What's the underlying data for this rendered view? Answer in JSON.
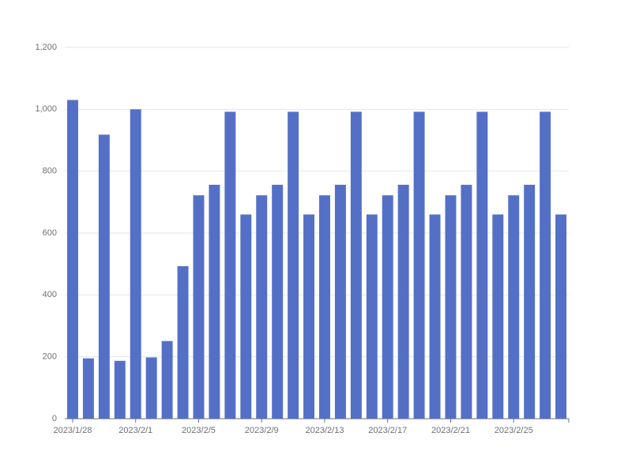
{
  "chart_data": {
    "type": "bar",
    "categories": [
      "2023/1/28",
      null,
      null,
      null,
      "2023/2/1",
      null,
      null,
      null,
      "2023/2/5",
      null,
      null,
      null,
      "2023/2/9",
      null,
      null,
      null,
      "2023/2/13",
      null,
      null,
      null,
      "2023/2/17",
      null,
      null,
      null,
      "2023/2/21",
      null,
      null,
      null,
      "2023/2/25",
      null,
      null,
      null
    ],
    "values": [
      1030,
      195,
      918,
      187,
      1000,
      198,
      251,
      493,
      722,
      756,
      992,
      660,
      722,
      756,
      992,
      660,
      722,
      756,
      992,
      660,
      722,
      756,
      992,
      660,
      722,
      756,
      992,
      660,
      722,
      756,
      992,
      660
    ],
    "color": "#5470c6",
    "ylim": [
      0,
      1200
    ],
    "yticks": [
      0,
      200,
      400,
      600,
      800,
      {
        "value": 1000,
        "label": "1,000"
      },
      {
        "value": 1200,
        "label": "1,200"
      }
    ],
    "grid": true
  }
}
